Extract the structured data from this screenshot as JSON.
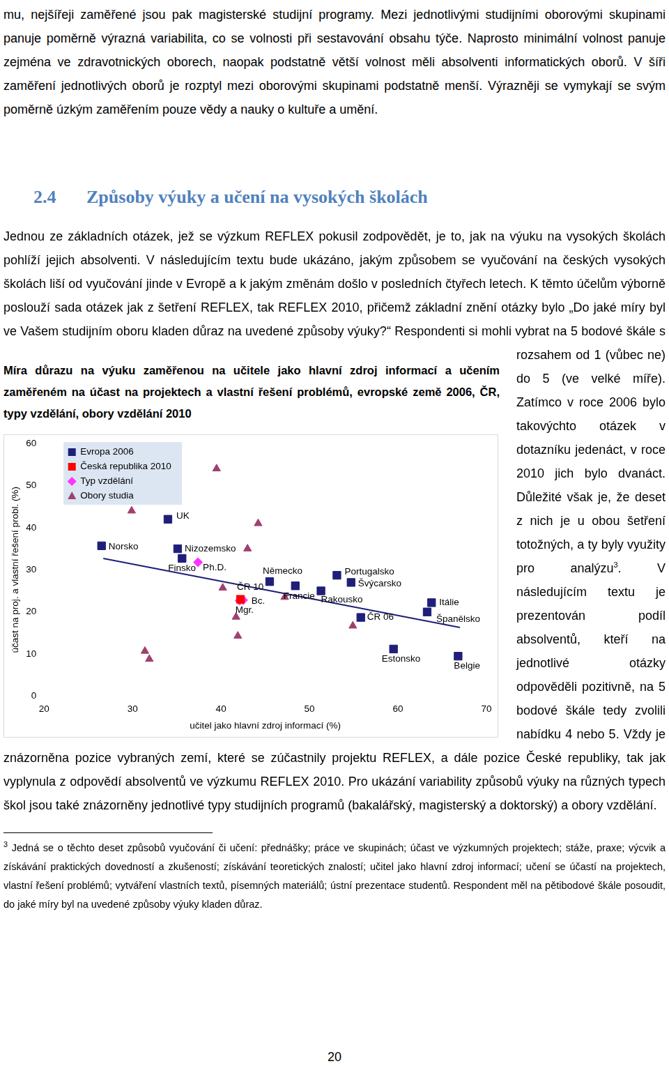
{
  "page": {
    "top_paragraph": "mu, nejšířeji zaměřené jsou pak magisterské studijní programy. Mezi jednotlivými studijními oborovými skupinami panuje poměrně výrazná variabilita, co se volnosti při sestavování obsahu týče. Naprosto minimální volnost panuje zejména ve zdravotnických oborech, naopak podstatně větší volnost měli absolventi informatických oborů. V šíři zaměření jednotlivých oborů je rozptyl mezi oborovými skupinami podstatně menší. Výrazněji se vymykají se svým poměrně úzkým zaměřením pouze vědy a nauky o kultuře a umění.",
    "section": {
      "number": "2.4",
      "title": "Způsoby výuky a učení na vysokých školách"
    },
    "body": {
      "before_note": "Jednou ze základních otázek, jež se výzkum REFLEX pokusil zodpovědět, je to, jak na výuku na vysokých školách pohlíží jejich absolventi. V následujícím textu bude ukázáno, jakým způsobem se vyučování na českých vysokých školách liší od vyučování jinde v Evropě a k jakým změnám došlo v posledních čtyřech letech. K těmto účelům výborně poslouží sada otázek jak z šetření REFLEX, tak REFLEX 2010, přičemž základní znění otázky bylo „Do jaké míry byl ve Vašem studijním oboru kladen důraz na uvedené způsoby výuky?“ Respondenti si mohli vybrat na 5 bodové škále s rozsahem od 1 (vůbec ne) do 5 (ve velké míře). Zatímco v roce 2006 bylo takovýchto otázek v dotazníku jedenáct, v roce 2010 jich bylo dvanáct. Důležité však je, že deset z nich je u obou šetření totožných, a ty byly využity pro analýzu",
      "note_ref": "3",
      "after_note": ". V následujícím textu je prezentován podíl absolventů, kteří na jednotlivé otázky odpověděli pozitivně, na 5 bodové škále tedy zvolili nabídku 4 nebo 5. Vždy je znázorněna pozice vybraných zemí, které se zúčastnily projektu REFLEX, a dále pozice České republiky, tak jak vyplynula z odpovědí absolventů ve výzkumu REFLEX 2010. Pro ukázání variability způsobů výuky na různých typech škol jsou také znázorněny jednotlivé typy studijních programů (bakalářský, magisterský a doktorský) a obory vzdělání."
    },
    "footnote": {
      "mark": "3",
      "text": "Jedná se o těchto deset způsobů vyučování či učení: přednášky; práce ve skupinách; účast ve výzkumných projektech; stáže, praxe; výcvik a získávání praktických dovedností a zkušeností; získávání teoretických znalostí; učitel jako hlavní zdroj informací; učení se účastí na projektech, vlastní řešení problémů; vytváření vlastních textů, písemných materiálů; ústní prezentace studentů. Respondent měl na pětibodové škále posoudit, do jaké míry byl na uvedené způsoby výuky kladen důraz."
    },
    "page_number": "20"
  },
  "chart_data": {
    "type": "scatter",
    "title": "Míra důrazu na výuku zaměřenou na učitele jako hlavní zdroj informací a učením zaměřeném na účast na projektech a vlastní řešení problémů, evropské země 2006, ČR, typy vzdělání, obory vzdělání 2010",
    "x_label": "učitel jako hlavní zdroj informací (%)",
    "y_label": "účast na proj. a vlastní řešení probl. (%)",
    "xlim": [
      20,
      70
    ],
    "xticks": [
      20,
      30,
      40,
      50,
      60,
      70
    ],
    "ylim": [
      0,
      60
    ],
    "yticks": [
      0,
      10,
      20,
      30,
      40,
      50,
      60
    ],
    "grid": false,
    "legend": "upper left",
    "series": [
      {
        "name": "Evropa 2006",
        "color": "#1f1f7a",
        "marker": "square",
        "x": [
          34.0,
          26.5,
          35.1,
          35.6,
          45.5,
          48.4,
          53.1,
          54.7,
          51.3,
          63.8,
          63.3,
          59.5,
          66.8,
          55.8
        ],
        "y": [
          42.0,
          35.7,
          35.0,
          32.7,
          27.2,
          26.2,
          28.7,
          27.0,
          25.0,
          22.2,
          20.0,
          11.2,
          9.5,
          18.7
        ],
        "labels": [
          "UK",
          "Norsko",
          "Nizozemsko",
          "Finsko",
          "Německo",
          "Francie",
          "Portugalsko",
          "Švýcarsko",
          "Rakousko",
          "Itálie",
          "Španělsko",
          "Estonsko",
          "Belgie",
          "ČR 06"
        ]
      },
      {
        "name": "Česká republika 2010",
        "color": "#ff0000",
        "marker": "square",
        "x": [
          42.2
        ],
        "y": [
          23.0
        ],
        "labels": [
          "ČR 10"
        ]
      },
      {
        "name": "Typ vzdělání",
        "color": "#ff33ff",
        "marker": "diamond",
        "x": [
          37.4,
          42.5,
          42.1
        ],
        "y": [
          31.8,
          22.8,
          22.7
        ],
        "labels": [
          "Ph.D.",
          "Bc.",
          "Mgr."
        ]
      },
      {
        "name": "Obory studia",
        "color": "#a0406e",
        "marker": "triangle",
        "x": [
          39.5,
          29.9,
          44.2,
          43.0,
          40.2,
          47.2,
          41.7,
          41.9,
          31.4,
          31.9,
          54.9
        ],
        "y": [
          54.0,
          44.0,
          41.0,
          35.0,
          25.7,
          23.5,
          18.8,
          14.3,
          10.7,
          8.8,
          16.7
        ]
      },
      {
        "type": "line",
        "color": "#1f1f7a",
        "x": [
          26.7,
          67.0
        ],
        "y": [
          32.7,
          16.3
        ]
      }
    ]
  }
}
